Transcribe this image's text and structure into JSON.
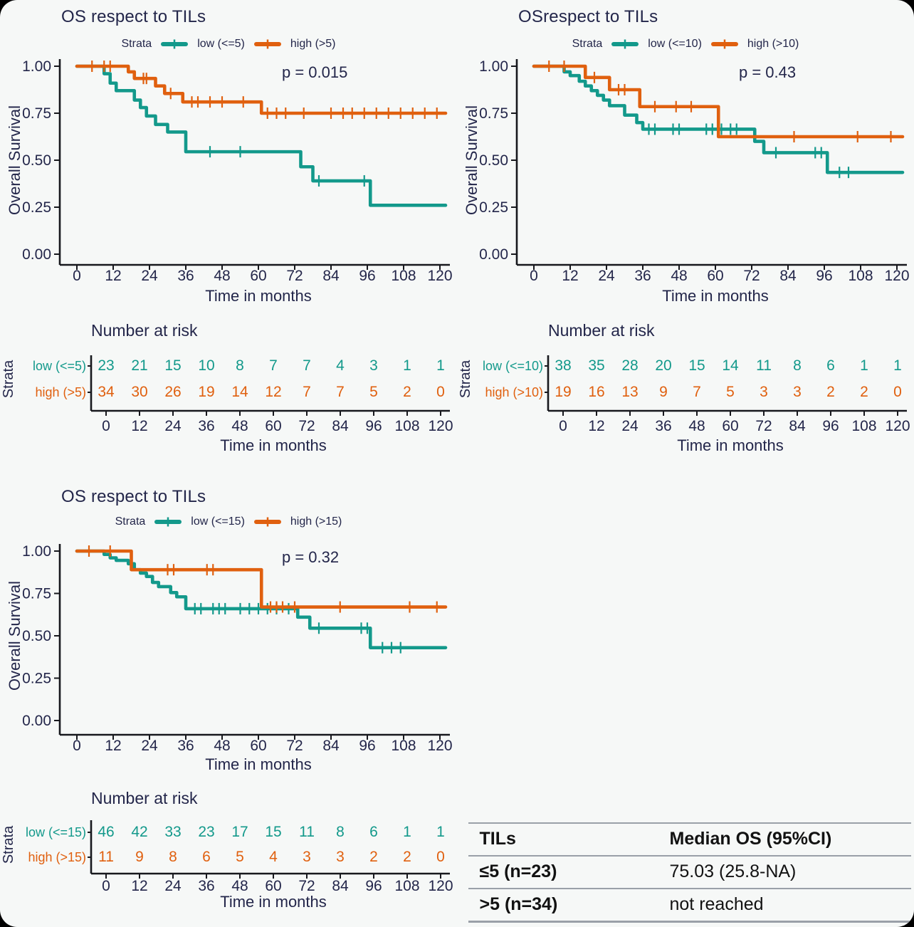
{
  "style": {
    "ink": "#23264a",
    "axis_color": "#17181d",
    "background": "#f6f8f7",
    "page_background": "#000000",
    "table_line_color": "#9aa0a8",
    "table_text_color": "#121212"
  },
  "colors": {
    "low": "#13998b",
    "high": "#e0600f"
  },
  "chart_data": [
    {
      "type": "line",
      "subtype": "kaplan-meier-step",
      "title": "OS respect to TILs",
      "p_value": "p = 0.015",
      "legend_title": "Strata",
      "legend_position": "top",
      "xlabel": "Time in months",
      "ylabel": "Overall Survival",
      "xlim": [
        0,
        120
      ],
      "ylim": [
        0,
        1
      ],
      "grid": false,
      "xticks": [
        0,
        12,
        24,
        36,
        48,
        60,
        72,
        84,
        96,
        108,
        120
      ],
      "yticks": [
        0,
        0.25,
        0.5,
        0.75,
        1.0
      ],
      "ytick_labels": [
        "0.00",
        "0.25",
        "0.50",
        "0.75",
        "1.00"
      ],
      "series": [
        {
          "name": "low (<=5)",
          "color": "#13998b",
          "steps": [
            [
              0,
              1.0
            ],
            [
              9,
              0.96
            ],
            [
              11,
              0.91
            ],
            [
              13,
              0.87
            ],
            [
              19,
              0.82
            ],
            [
              21,
              0.78
            ],
            [
              23,
              0.735
            ],
            [
              26,
              0.69
            ],
            [
              30,
              0.65
            ],
            [
              36,
              0.545
            ],
            [
              74,
              0.465
            ],
            [
              78,
              0.39
            ],
            [
              97,
              0.26
            ]
          ],
          "censor_times": [
            44,
            54,
            80,
            95
          ]
        },
        {
          "name": "high (>5)",
          "color": "#e0600f",
          "steps": [
            [
              0,
              1.0
            ],
            [
              17,
              0.97
            ],
            [
              19,
              0.935
            ],
            [
              26,
              0.895
            ],
            [
              29,
              0.855
            ],
            [
              35,
              0.81
            ],
            [
              61,
              0.75
            ]
          ],
          "censor_times": [
            5,
            9,
            11,
            22,
            23,
            31,
            38,
            40,
            44,
            48,
            55,
            63,
            66,
            69,
            75,
            84,
            88,
            91,
            95,
            99,
            103,
            107,
            111,
            115,
            119
          ]
        }
      ],
      "number_at_risk": {
        "title": "Number at risk",
        "strata_axis_label": "Strata",
        "rows": [
          {
            "label": "low (<=5)",
            "color": "#13998b",
            "values": [
              23,
              21,
              15,
              10,
              8,
              7,
              7,
              4,
              3,
              1,
              1
            ]
          },
          {
            "label": "high (>5)",
            "color": "#e0600f",
            "values": [
              34,
              30,
              26,
              19,
              14,
              12,
              7,
              7,
              5,
              2,
              0
            ]
          }
        ]
      }
    },
    {
      "type": "line",
      "subtype": "kaplan-meier-step",
      "title": "OSrespect to TILs",
      "p_value": "p = 0.43",
      "legend_title": "Strata",
      "legend_position": "top",
      "xlabel": "Time in months",
      "ylabel": "Overall Survival",
      "xlim": [
        0,
        120
      ],
      "ylim": [
        0,
        1
      ],
      "grid": false,
      "xticks": [
        0,
        12,
        24,
        36,
        48,
        60,
        72,
        84,
        96,
        108,
        120
      ],
      "yticks": [
        0,
        0.25,
        0.5,
        0.75,
        1.0
      ],
      "ytick_labels": [
        "0.00",
        "0.25",
        "0.50",
        "0.75",
        "1.00"
      ],
      "series": [
        {
          "name": "low (<=10)",
          "color": "#13998b",
          "steps": [
            [
              0,
              1.0
            ],
            [
              10,
              0.97
            ],
            [
              12,
              0.95
            ],
            [
              15,
              0.92
            ],
            [
              17,
              0.895
            ],
            [
              19,
              0.87
            ],
            [
              21,
              0.845
            ],
            [
              23,
              0.82
            ],
            [
              25,
              0.79
            ],
            [
              30,
              0.74
            ],
            [
              34,
              0.7
            ],
            [
              36,
              0.665
            ],
            [
              73,
              0.6
            ],
            [
              76,
              0.54
            ],
            [
              97,
              0.435
            ]
          ],
          "censor_times": [
            38,
            40,
            46,
            48,
            57,
            59,
            62,
            65,
            67,
            80,
            93,
            95,
            101,
            104
          ]
        },
        {
          "name": "high (>10)",
          "color": "#e0600f",
          "steps": [
            [
              0,
              1.0
            ],
            [
              17,
              0.94
            ],
            [
              25,
              0.875
            ],
            [
              35,
              0.785
            ],
            [
              61,
              0.625
            ]
          ],
          "censor_times": [
            5,
            10,
            20,
            28,
            30,
            40,
            47,
            52,
            86,
            107,
            118
          ]
        }
      ],
      "number_at_risk": {
        "title": "Number at risk",
        "strata_axis_label": "Strata",
        "rows": [
          {
            "label": "low (<=10)",
            "color": "#13998b",
            "values": [
              38,
              35,
              28,
              20,
              15,
              14,
              11,
              8,
              6,
              1,
              1
            ]
          },
          {
            "label": "high (>10)",
            "color": "#e0600f",
            "values": [
              19,
              16,
              13,
              9,
              7,
              5,
              3,
              3,
              2,
              2,
              0
            ]
          }
        ]
      }
    },
    {
      "type": "line",
      "subtype": "kaplan-meier-step",
      "title": "OS respect to TILs",
      "p_value": "p = 0.32",
      "legend_title": "Strata",
      "legend_position": "top",
      "xlabel": "Time in months",
      "ylabel": "Overall Survival",
      "xlim": [
        0,
        120
      ],
      "ylim": [
        0,
        1
      ],
      "grid": false,
      "xticks": [
        0,
        12,
        24,
        36,
        48,
        60,
        72,
        84,
        96,
        108,
        120
      ],
      "yticks": [
        0,
        0.25,
        0.5,
        0.75,
        1.0
      ],
      "ytick_labels": [
        "0.00",
        "0.25",
        "0.50",
        "0.75",
        "1.00"
      ],
      "series": [
        {
          "name": "low (<=15)",
          "color": "#13998b",
          "steps": [
            [
              0,
              1.0
            ],
            [
              9,
              0.98
            ],
            [
              11,
              0.96
            ],
            [
              13,
              0.945
            ],
            [
              17,
              0.925
            ],
            [
              19,
              0.89
            ],
            [
              21,
              0.87
            ],
            [
              23,
              0.85
            ],
            [
              25,
              0.815
            ],
            [
              27,
              0.79
            ],
            [
              31,
              0.755
            ],
            [
              33,
              0.73
            ],
            [
              36,
              0.66
            ],
            [
              73,
              0.61
            ],
            [
              77,
              0.545
            ],
            [
              97,
              0.43
            ]
          ],
          "censor_times": [
            39,
            41,
            45,
            47,
            49,
            54,
            57,
            60,
            63,
            66,
            70,
            80,
            94,
            96,
            101,
            104,
            107
          ]
        },
        {
          "name": "high (>15)",
          "color": "#e0600f",
          "steps": [
            [
              0,
              1.0
            ],
            [
              18,
              0.89
            ],
            [
              61,
              0.67
            ]
          ],
          "censor_times": [
            4,
            11,
            30,
            32,
            43,
            45,
            64,
            66,
            68,
            72,
            87,
            110,
            119
          ]
        }
      ],
      "number_at_risk": {
        "title": "Number at risk",
        "strata_axis_label": "Strata",
        "rows": [
          {
            "label": "low (<=15)",
            "color": "#13998b",
            "values": [
              46,
              42,
              33,
              23,
              17,
              15,
              11,
              8,
              6,
              1,
              1
            ]
          },
          {
            "label": "high (>15)",
            "color": "#e0600f",
            "values": [
              11,
              9,
              8,
              6,
              5,
              4,
              3,
              3,
              2,
              2,
              0
            ]
          }
        ]
      }
    }
  ],
  "summary_table": {
    "headers": [
      "TILs",
      "Median OS (95%CI)"
    ],
    "rows": [
      [
        "≤5 (n=23)",
        "75.03 (25.8-NA)"
      ],
      [
        ">5 (n=34)",
        "not reached"
      ]
    ]
  }
}
